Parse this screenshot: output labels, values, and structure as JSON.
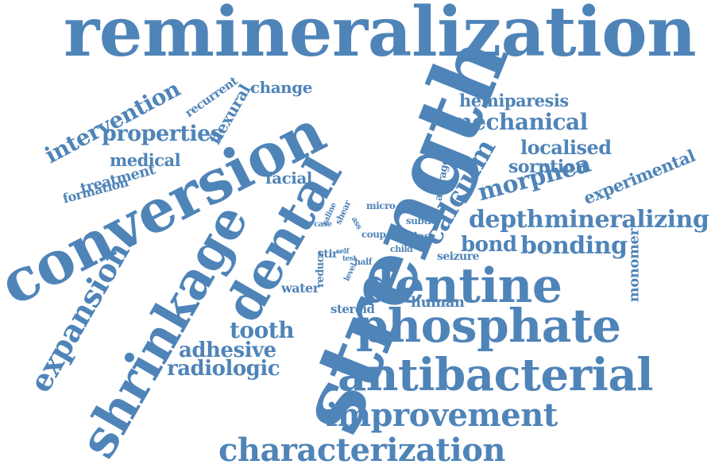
{
  "color": "#4f84b8",
  "background": "#ffffff",
  "words": [
    "remineralization",
    "strength",
    "conversion",
    "shrinkage",
    "dental",
    "dentine",
    "phosphate",
    "antibacterial",
    "improvement",
    "characterization",
    "expansion",
    "calcium",
    "mineralizing",
    "depth",
    "morphea",
    "bonding",
    "bond",
    "mechanical",
    "hemiparesis",
    "localised",
    "sorption",
    "experimental",
    "monomer",
    "intervention",
    "properties",
    "medical",
    "treatment",
    "formation",
    "flexural",
    "recurrent",
    "change",
    "facial",
    "tooth",
    "adhesive",
    "radiologic",
    "water",
    "steroid",
    "human",
    "seizure",
    "average",
    "micro",
    "subtle",
    "caries",
    "coup",
    "child",
    "ass",
    "case",
    "saline",
    "shear",
    "reduce",
    "stir",
    "self",
    "test",
    "level",
    "half"
  ]
}
